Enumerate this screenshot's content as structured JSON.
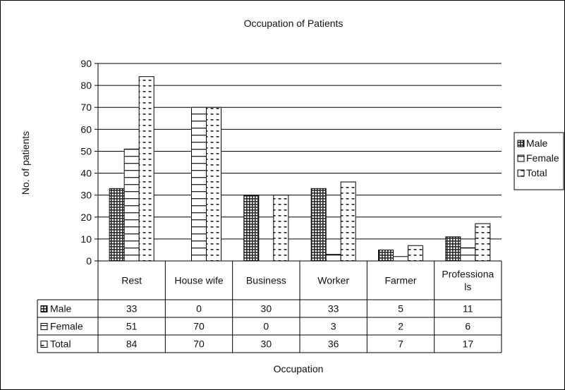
{
  "chart_data": {
    "type": "bar",
    "title": "Occupation of Patients",
    "xlabel": "Occupation",
    "ylabel": "No. of patients",
    "ylim": [
      0,
      90
    ],
    "yticks": [
      0,
      10,
      20,
      30,
      40,
      50,
      60,
      70,
      80,
      90
    ],
    "grid": true,
    "legend_position": "right",
    "categories": [
      "Rest",
      "House wife",
      "Business",
      "Worker",
      "Farmer",
      "Professionals"
    ],
    "category_display": [
      [
        "Rest"
      ],
      [
        "House wife"
      ],
      [
        "Business"
      ],
      [
        "Worker"
      ],
      [
        "Farmer"
      ],
      [
        "Professiona",
        "ls"
      ]
    ],
    "series": [
      {
        "name": "Male",
        "values": [
          33,
          0,
          30,
          33,
          5,
          11
        ],
        "pattern": "brick-dense"
      },
      {
        "name": "Female",
        "values": [
          51,
          70,
          0,
          3,
          2,
          6
        ],
        "pattern": "horizontal-lines"
      },
      {
        "name": "Total",
        "values": [
          84,
          70,
          30,
          36,
          7,
          17
        ],
        "pattern": "vertical-dashes"
      }
    ],
    "data_table": true
  }
}
